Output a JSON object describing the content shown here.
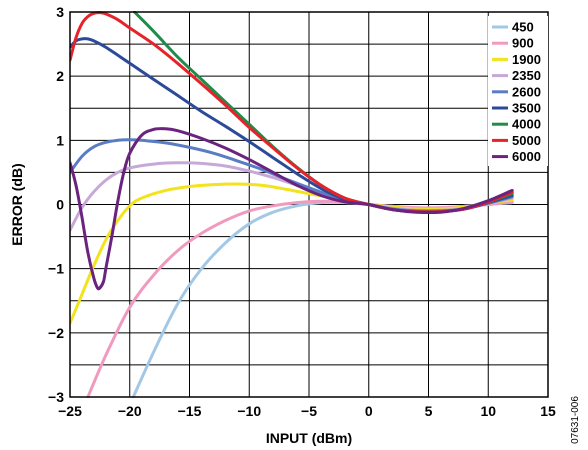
{
  "chart_data": {
    "type": "line",
    "title": "",
    "xlabel": "INPUT (dBm)",
    "ylabel": "ERROR (dB)",
    "xlim": [
      -25,
      15
    ],
    "ylim": [
      -3,
      3
    ],
    "xticks": [
      -25,
      -20,
      -15,
      -10,
      -5,
      0,
      5,
      10,
      15
    ],
    "xtick_labels": [
      "−25",
      "−20",
      "−15",
      "−10",
      "−5",
      "0",
      "5",
      "10",
      "15"
    ],
    "yticks": [
      -3,
      -2,
      -1,
      0,
      1,
      2,
      3
    ],
    "ytick_labels": [
      "−3",
      "−2",
      "−1",
      "0",
      "1",
      "2",
      "3"
    ],
    "grid": true,
    "legend_position": "top-right",
    "figure_code": "07631-006",
    "series": [
      {
        "name": "450",
        "color": "#a3c8e6",
        "x": [
          -19.7,
          -18,
          -16,
          -14,
          -12,
          -10,
          -8,
          -6,
          -4,
          -2,
          0,
          2,
          4,
          6,
          8,
          10,
          12
        ],
        "y": [
          -3.0,
          -2.3,
          -1.55,
          -1.0,
          -0.6,
          -0.3,
          -0.12,
          -0.02,
          0.03,
          0.03,
          0.0,
          -0.03,
          -0.05,
          -0.05,
          -0.03,
          0.0,
          0.03
        ]
      },
      {
        "name": "900",
        "color": "#f09ac0",
        "x": [
          -23.5,
          -22,
          -20,
          -18,
          -16,
          -14,
          -12,
          -10,
          -8,
          -6,
          -4,
          -2,
          0,
          2,
          4,
          6,
          8,
          10,
          12
        ],
        "y": [
          -3.0,
          -2.35,
          -1.6,
          -1.1,
          -0.72,
          -0.45,
          -0.25,
          -0.1,
          -0.02,
          0.03,
          0.05,
          0.04,
          0.0,
          -0.03,
          -0.05,
          -0.05,
          -0.03,
          0.0,
          0.04
        ]
      },
      {
        "name": "1900",
        "color": "#f2e31a",
        "x": [
          -25,
          -24,
          -23,
          -22,
          -21,
          -20,
          -19,
          -17,
          -15,
          -13,
          -11,
          -9,
          -7,
          -5,
          -3,
          -1,
          0,
          2,
          4,
          6,
          8,
          10,
          12
        ],
        "y": [
          -1.85,
          -1.4,
          -0.95,
          -0.55,
          -0.25,
          -0.02,
          0.1,
          0.22,
          0.28,
          0.31,
          0.32,
          0.3,
          0.24,
          0.17,
          0.1,
          0.03,
          0.0,
          -0.04,
          -0.07,
          -0.07,
          -0.04,
          0.02,
          0.07
        ]
      },
      {
        "name": "2350",
        "color": "#c7a8d8",
        "x": [
          -25,
          -24,
          -23,
          -22,
          -21,
          -20,
          -18,
          -16,
          -14,
          -12,
          -10,
          -8,
          -6,
          -4,
          -2,
          0,
          2,
          4,
          6,
          8,
          10,
          12
        ],
        "y": [
          -0.4,
          -0.05,
          0.2,
          0.38,
          0.5,
          0.57,
          0.63,
          0.65,
          0.64,
          0.6,
          0.52,
          0.42,
          0.3,
          0.18,
          0.08,
          0.0,
          -0.06,
          -0.09,
          -0.09,
          -0.06,
          0.02,
          0.1
        ]
      },
      {
        "name": "2600",
        "color": "#5a7cc4",
        "x": [
          -25,
          -24,
          -23,
          -22,
          -21,
          -20,
          -19,
          -17,
          -15,
          -13,
          -11,
          -9,
          -7,
          -5,
          -3,
          -1,
          0,
          2,
          4,
          6,
          8,
          10,
          12
        ],
        "y": [
          0.5,
          0.75,
          0.9,
          0.97,
          1.0,
          1.01,
          1.0,
          0.96,
          0.89,
          0.8,
          0.68,
          0.55,
          0.4,
          0.26,
          0.13,
          0.04,
          0.0,
          -0.07,
          -0.1,
          -0.1,
          -0.07,
          0.02,
          0.12
        ]
      },
      {
        "name": "3500",
        "color": "#2b4a9a",
        "x": [
          -25,
          -24.5,
          -24,
          -23.5,
          -23,
          -22,
          -20,
          -18,
          -16,
          -14,
          -12,
          -10,
          -8,
          -6,
          -4,
          -2,
          0,
          2,
          4,
          6,
          8,
          10,
          12
        ],
        "y": [
          2.45,
          2.55,
          2.58,
          2.58,
          2.55,
          2.45,
          2.2,
          1.95,
          1.7,
          1.45,
          1.22,
          0.98,
          0.73,
          0.48,
          0.25,
          0.08,
          0.0,
          -0.08,
          -0.11,
          -0.11,
          -0.07,
          0.03,
          0.14
        ]
      },
      {
        "name": "4000",
        "color": "#1f8c4a",
        "x": [
          -19.6,
          -18,
          -16,
          -14,
          -12,
          -10,
          -8,
          -6,
          -4,
          -2,
          0,
          2,
          4,
          6,
          8,
          10,
          12
        ],
        "y": [
          3.0,
          2.7,
          2.3,
          1.95,
          1.6,
          1.25,
          0.9,
          0.58,
          0.3,
          0.1,
          0.0,
          -0.08,
          -0.11,
          -0.11,
          -0.07,
          0.04,
          0.17
        ]
      },
      {
        "name": "5000",
        "color": "#e8222a",
        "x": [
          -25,
          -24.5,
          -24,
          -23.5,
          -23,
          -22.5,
          -22,
          -21,
          -20,
          -18,
          -16,
          -14,
          -12,
          -10,
          -8,
          -6,
          -4,
          -2,
          0,
          2,
          4,
          6,
          8,
          10,
          12
        ],
        "y": [
          2.25,
          2.6,
          2.82,
          2.93,
          2.98,
          2.99,
          2.97,
          2.88,
          2.75,
          2.5,
          2.2,
          1.88,
          1.55,
          1.2,
          0.88,
          0.57,
          0.3,
          0.1,
          0.0,
          -0.08,
          -0.11,
          -0.11,
          -0.07,
          0.04,
          0.19
        ]
      },
      {
        "name": "6000",
        "color": "#6b2380",
        "x": [
          -25,
          -24.5,
          -24,
          -23.5,
          -23,
          -22.7,
          -22.5,
          -22.2,
          -22,
          -21.5,
          -21,
          -20.5,
          -20,
          -19,
          -18,
          -17,
          -16,
          -14,
          -12,
          -10,
          -8,
          -6,
          -4,
          -2,
          0,
          2,
          4,
          6,
          8,
          10,
          12
        ],
        "y": [
          0.65,
          0.3,
          -0.2,
          -0.75,
          -1.15,
          -1.3,
          -1.3,
          -1.2,
          -1.0,
          -0.5,
          0.05,
          0.5,
          0.8,
          1.08,
          1.17,
          1.18,
          1.15,
          1.03,
          0.88,
          0.7,
          0.5,
          0.3,
          0.14,
          0.04,
          0.0,
          -0.08,
          -0.12,
          -0.12,
          -0.06,
          0.06,
          0.22
        ]
      }
    ]
  }
}
